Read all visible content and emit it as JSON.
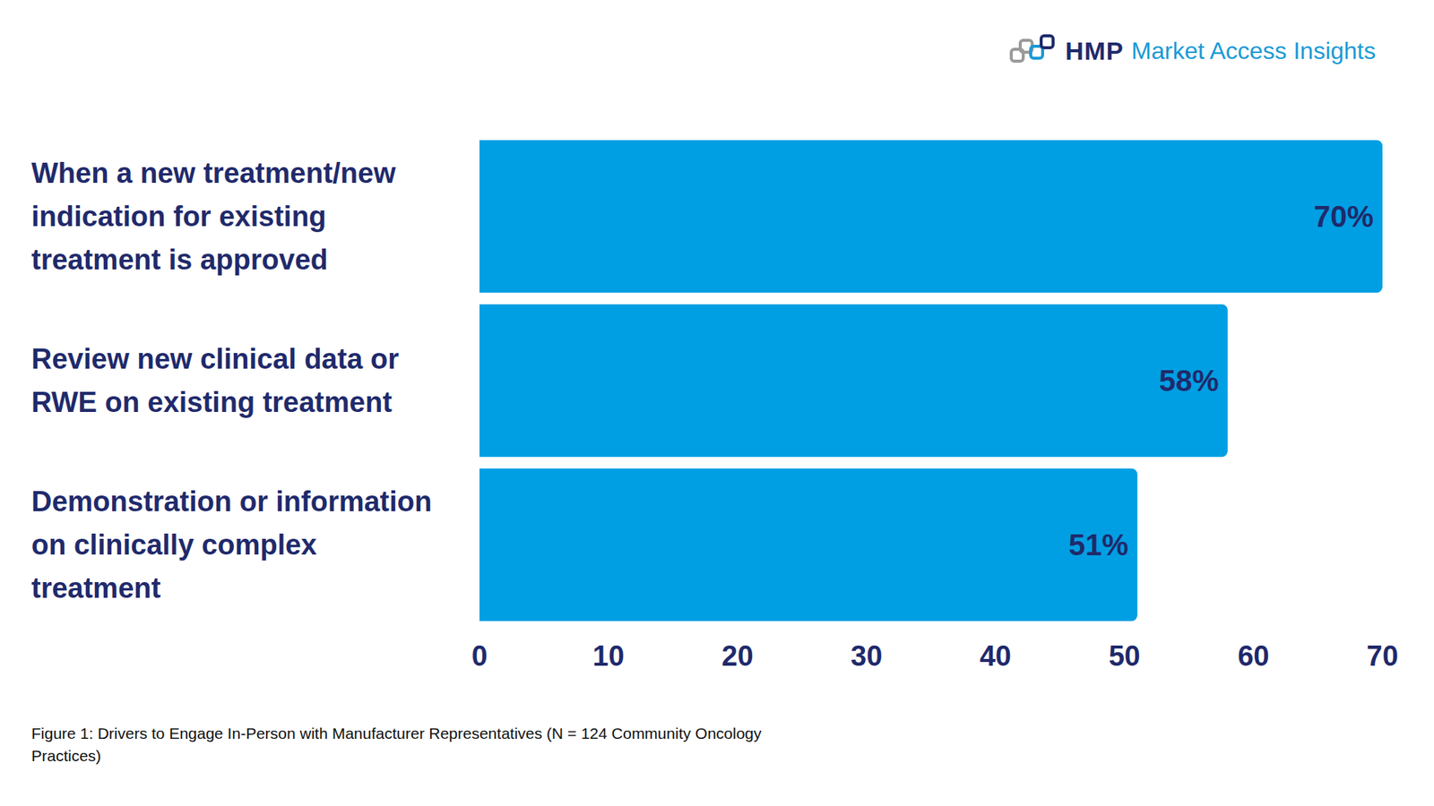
{
  "chart_data": {
    "type": "bar",
    "orientation": "horizontal",
    "logo": [
      "HMP",
      "Market Access Insights"
    ],
    "caption": "Figure 1: Drivers to Engage In-Person with Manufacturer Representatives (N = 124 Community Oncology Practices)",
    "categories": [
      "When a new treatment/new indication for existing treatment is approved",
      "Review new clinical data or RWE on existing treatment",
      "Demonstration or information on clinically complex treatment"
    ],
    "values": [
      70,
      58,
      51
    ],
    "value_labels": [
      "70%",
      "58%",
      "51%"
    ],
    "data_labels": true,
    "color": "#009fe3",
    "xlim": [
      0,
      70
    ],
    "xticks": [
      0,
      10,
      20,
      30,
      40,
      50,
      60,
      70
    ],
    "grid": false
  }
}
